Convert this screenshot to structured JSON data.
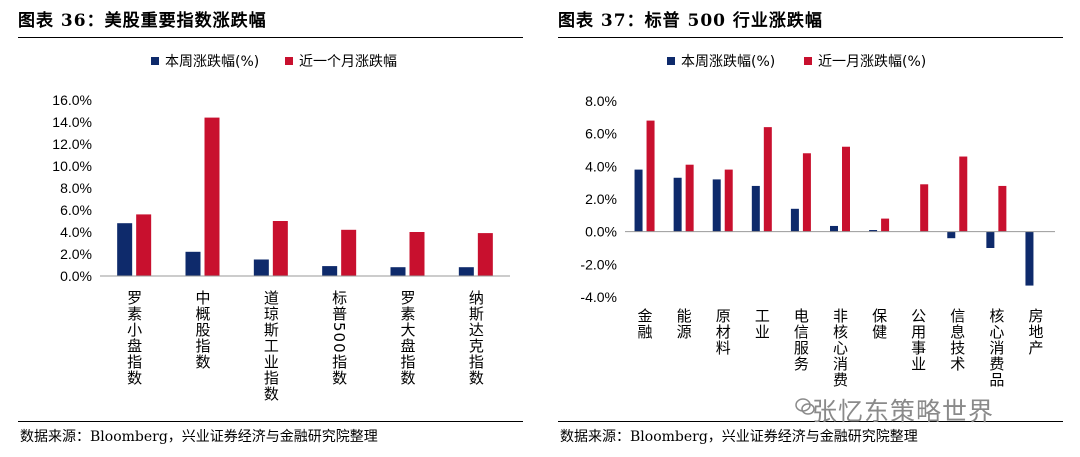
{
  "left": {
    "title": "图表 36：美股重要指数涨跌幅",
    "source": "数据来源：Bloomberg，兴业证券经济与金融研究院整理"
  },
  "right": {
    "title": "图表 37：标普 500 行业涨跌幅",
    "source": "数据来源：Bloomberg，兴业证券经济与金融研究院整理"
  },
  "watermark": "张忆东策略世界",
  "colors": {
    "series_week": "#0e2a6b",
    "series_month": "#c8102e"
  },
  "chart_data": [
    {
      "type": "bar",
      "categories": [
        "罗素小盘指数",
        "中概股指数",
        "道琼斯工业指数",
        "标普500指数",
        "罗素大盘指数",
        "纳斯达克指数"
      ],
      "series": [
        {
          "name": "本周涨跌幅(%)",
          "values": [
            4.8,
            2.2,
            1.5,
            0.9,
            0.8,
            0.8
          ]
        },
        {
          "name": "近一个月涨跌幅",
          "values": [
            5.6,
            14.4,
            5.0,
            4.2,
            4.0,
            3.9
          ]
        }
      ],
      "yticks": [
        "16.0%",
        "14.0%",
        "12.0%",
        "10.0%",
        "8.0%",
        "6.0%",
        "4.0%",
        "2.0%",
        "0.0%"
      ],
      "ylim": [
        0,
        16
      ],
      "legend": "top"
    },
    {
      "type": "bar",
      "categories": [
        "金融",
        "能源",
        "原材料",
        "工业",
        "电信服务",
        "非核心消费",
        "保健",
        "公用事业",
        "信息技术",
        "核心消费品",
        "房地产"
      ],
      "series": [
        {
          "name": "本周涨跌幅(%)",
          "values": [
            3.8,
            3.3,
            3.2,
            2.8,
            1.4,
            0.35,
            0.1,
            0.0,
            -0.4,
            -1.0,
            -3.3
          ]
        },
        {
          "name": "近一月涨跌幅(%)",
          "values": [
            6.8,
            4.1,
            3.8,
            6.4,
            4.8,
            5.2,
            0.8,
            2.9,
            4.6,
            2.8,
            0.0
          ]
        }
      ],
      "yticks": [
        "8.0%",
        "6.0%",
        "4.0%",
        "2.0%",
        "0.0%",
        "-2.0%",
        "-4.0%"
      ],
      "ylim": [
        -4,
        8
      ],
      "legend": "top"
    }
  ]
}
